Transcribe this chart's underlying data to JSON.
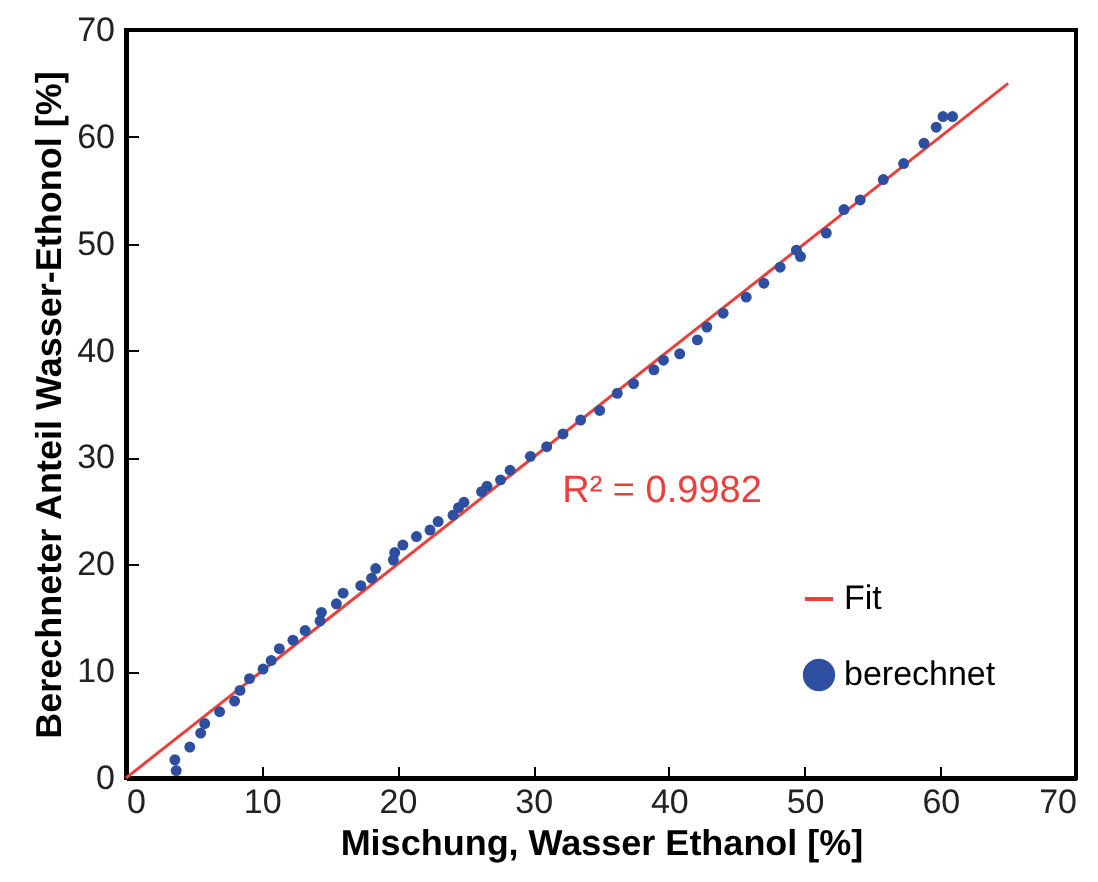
{
  "chart_data": {
    "type": "scatter",
    "xlabel": "Mischung, Wasser Ethanol [%]",
    "ylabel": "Berechneter Anteil Wasser-Ethonol [%]",
    "xlim": [
      0,
      70
    ],
    "ylim": [
      0,
      70
    ],
    "xticks": [
      0,
      10,
      20,
      30,
      40,
      50,
      60,
      70
    ],
    "yticks": [
      0,
      10,
      20,
      30,
      40,
      50,
      60,
      70
    ],
    "grid": false,
    "legend": "bottom right",
    "annotations": [
      "R² = 0.9982"
    ],
    "series": [
      {
        "name": "Fit",
        "type": "line",
        "color": "#e8413c",
        "x": [
          0,
          65
        ],
        "values": [
          0,
          65
        ]
      },
      {
        "name": "berechnet",
        "marker": "circle",
        "color": "#2e4fa0",
        "x": [
          3.6,
          3.7,
          4.7,
          5.5,
          5.8,
          6.9,
          8.0,
          8.4,
          9.1,
          10.1,
          10.7,
          11.3,
          12.3,
          13.2,
          14.3,
          14.4,
          15.5,
          16.0,
          17.3,
          18.1,
          18.4,
          19.7,
          19.8,
          20.4,
          21.4,
          22.4,
          23.0,
          24.1,
          24.5,
          24.9,
          26.2,
          26.6,
          27.6,
          28.3,
          29.8,
          31.0,
          32.2,
          33.5,
          34.9,
          36.2,
          37.4,
          38.9,
          39.6,
          40.8,
          42.1,
          42.8,
          44.0,
          45.7,
          47.0,
          48.2,
          49.4,
          49.7,
          51.6,
          52.9,
          54.1,
          55.8,
          57.3,
          58.8,
          59.7,
          60.2,
          60.9
        ],
        "values": [
          1.7,
          0.7,
          2.9,
          4.2,
          5.1,
          6.2,
          7.2,
          8.2,
          9.3,
          10.2,
          11.0,
          12.1,
          12.9,
          13.8,
          14.7,
          15.5,
          16.3,
          17.3,
          18.0,
          18.7,
          19.6,
          20.4,
          21.1,
          21.8,
          22.6,
          23.2,
          24.0,
          24.6,
          25.3,
          25.8,
          26.8,
          27.3,
          27.9,
          28.8,
          30.1,
          31.0,
          32.2,
          33.5,
          34.4,
          36.0,
          36.9,
          38.2,
          39.1,
          39.7,
          41.0,
          42.2,
          43.5,
          45.0,
          46.3,
          47.8,
          49.4,
          48.8,
          51.0,
          53.2,
          54.1,
          56.0,
          57.5,
          59.4,
          60.9,
          61.9,
          61.9
        ]
      }
    ]
  }
}
